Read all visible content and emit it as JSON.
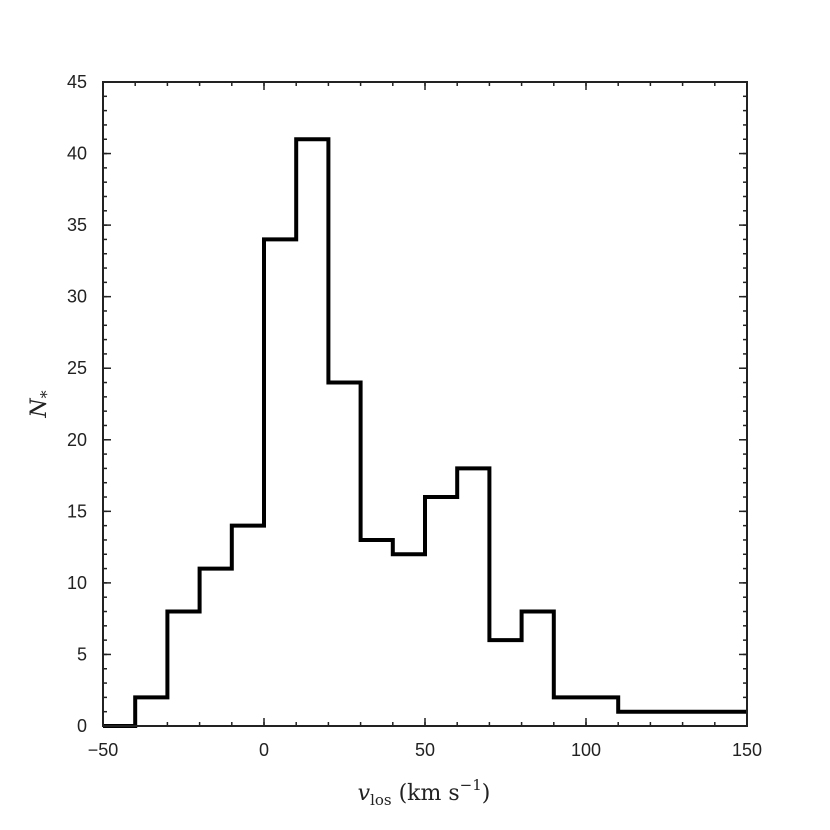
{
  "chart_data": {
    "type": "histogram",
    "bin_edges": [
      -50,
      -40,
      -30,
      -20,
      -10,
      0,
      10,
      20,
      30,
      40,
      50,
      60,
      70,
      80,
      90,
      100,
      110,
      120,
      130,
      140,
      150
    ],
    "values": [
      0,
      2,
      8,
      11,
      14,
      34,
      41,
      24,
      13,
      12,
      16,
      18,
      6,
      8,
      2,
      2,
      1,
      1,
      1,
      1
    ],
    "xlim": [
      -50,
      150
    ],
    "ylim": [
      0,
      45
    ],
    "x_ticks": [
      "−50",
      "0",
      "50",
      "100",
      "150"
    ],
    "y_ticks": [
      "0",
      "5",
      "10",
      "15",
      "20",
      "25",
      "30",
      "35",
      "40",
      "45"
    ],
    "xlabel": "v_los (km s^-1)",
    "ylabel": "N_*",
    "grid": false,
    "colors": {
      "line": "#000000",
      "axes": "#222222"
    }
  }
}
